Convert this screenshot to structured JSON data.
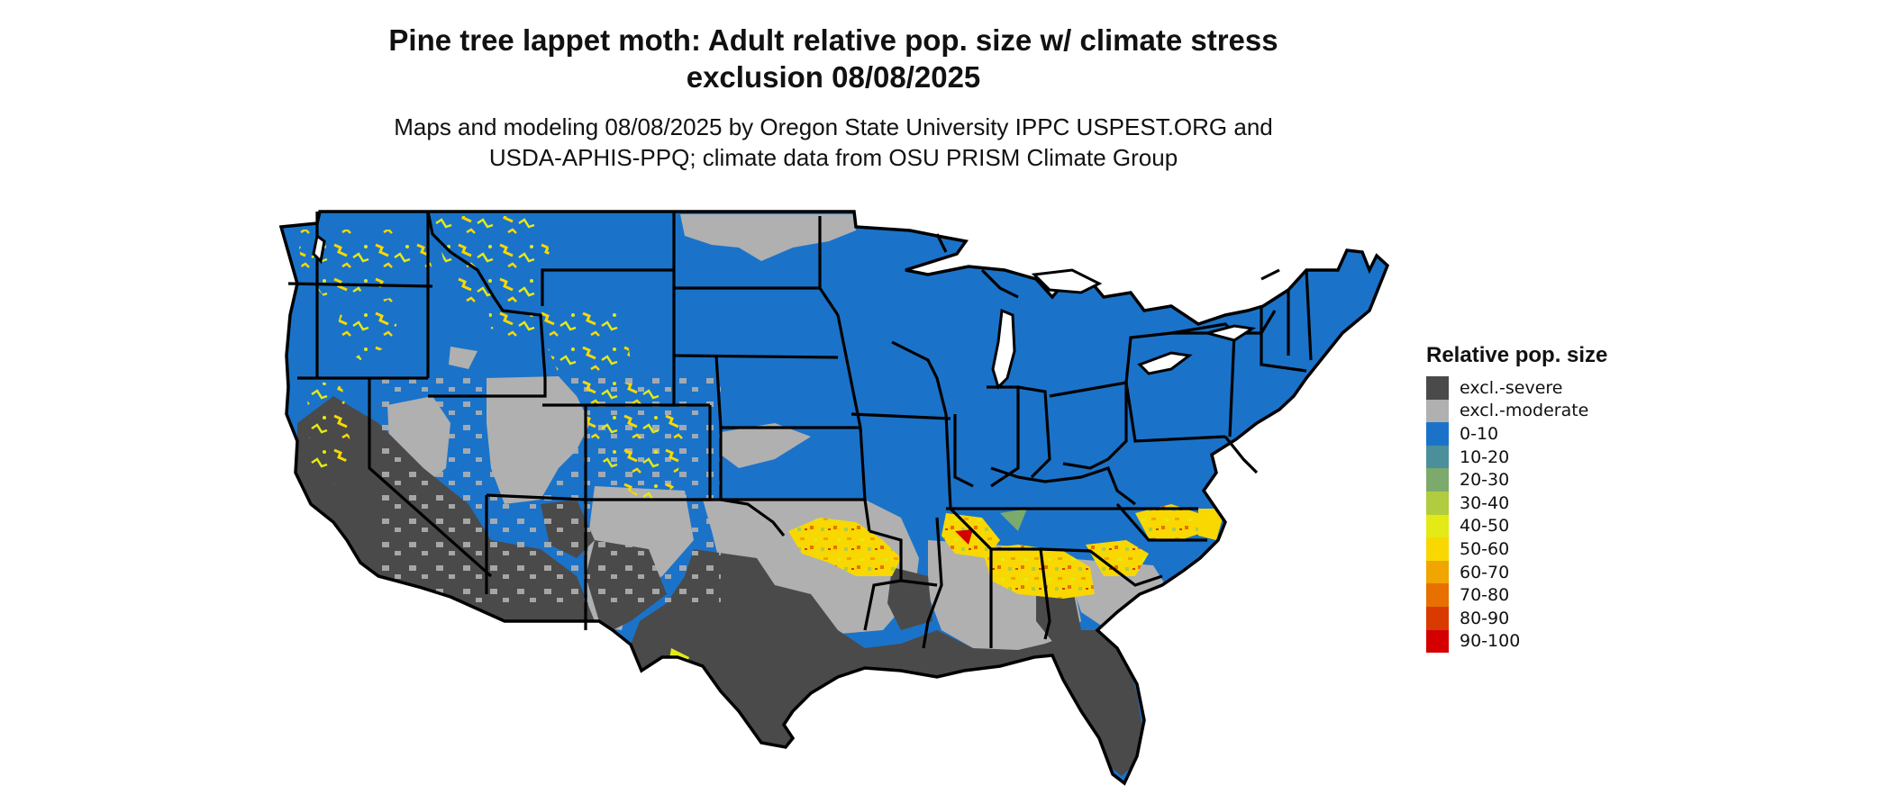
{
  "title": {
    "line1": "Pine tree lappet moth: Adult relative pop. size w/ climate stress",
    "line2": "exclusion 08/08/2025"
  },
  "subtitle": {
    "line1": "Maps and modeling 08/08/2025 by Oregon State University IPPC USPEST.ORG and",
    "line2": "USDA-APHIS-PPQ; climate data from OSU PRISM Climate Group"
  },
  "map": {
    "region": "Contiguous United States",
    "state_boundaries": true
  },
  "legend": {
    "title": "Relative pop. size",
    "items": [
      {
        "label": "excl.-severe",
        "color": "#4a4a4a"
      },
      {
        "label": "excl.-moderate",
        "color": "#b0b0b0"
      },
      {
        "label": "0-10",
        "color": "#1a73c9"
      },
      {
        "label": "10-20",
        "color": "#4a8f9a"
      },
      {
        "label": "20-30",
        "color": "#7caa6c"
      },
      {
        "label": "30-40",
        "color": "#b1cc3f"
      },
      {
        "label": "40-50",
        "color": "#e4ea16"
      },
      {
        "label": "50-60",
        "color": "#f8d800"
      },
      {
        "label": "60-70",
        "color": "#f0a500"
      },
      {
        "label": "70-80",
        "color": "#e87000"
      },
      {
        "label": "80-90",
        "color": "#d93a00"
      },
      {
        "label": "90-100",
        "color": "#d40000"
      }
    ]
  }
}
